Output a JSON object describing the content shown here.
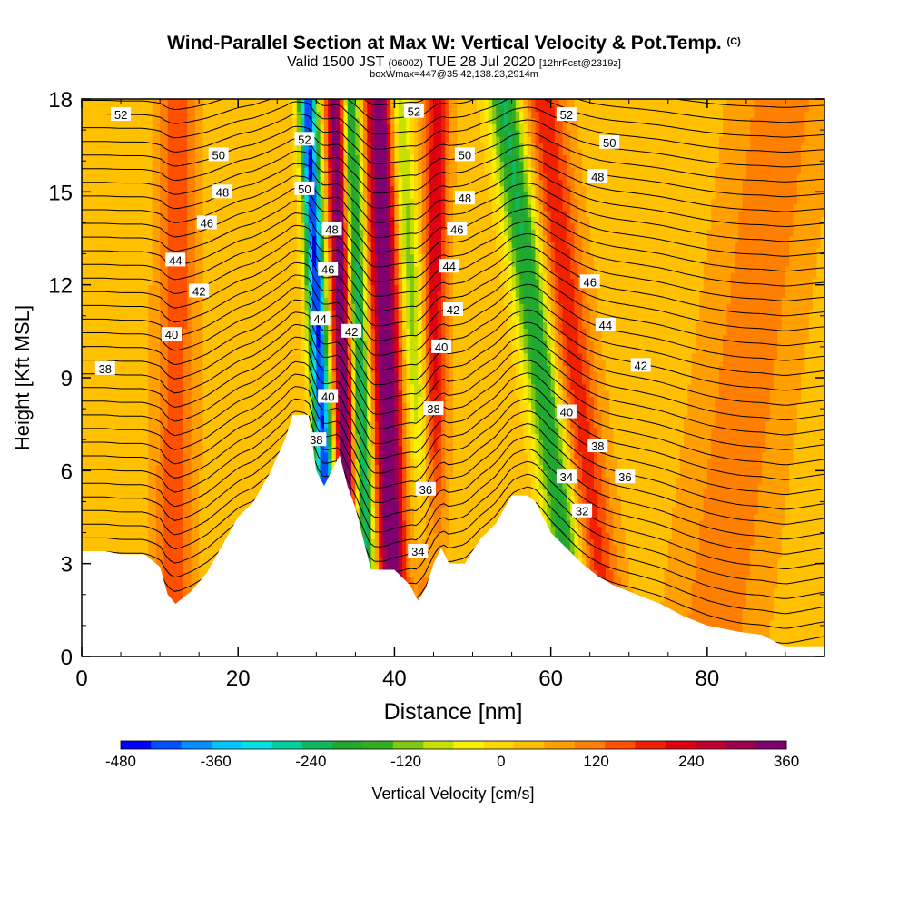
{
  "header": {
    "title": "Wind-Parallel Section at Max W: Vertical Velocity & Pot.Temp.",
    "title_mark": "(C)",
    "valid_prefix": "Valid 1500 JST",
    "valid_zulu": "(0600Z)",
    "valid_date": "TUE 28 Jul 2020",
    "forecast": "[12hrFcst@2319z]",
    "box_info": "boxWmax=447@35.42,138.23,2914m"
  },
  "chart_data": {
    "type": "heatmap",
    "xlabel": "Distance [nm]",
    "ylabel": "Height [Kft MSL]",
    "xlim": [
      0,
      95
    ],
    "ylim": [
      0,
      18
    ],
    "x_ticks": [
      0,
      20,
      40,
      60,
      80
    ],
    "y_ticks": [
      0,
      3,
      6,
      9,
      12,
      15,
      18
    ],
    "grid": false,
    "colorbar": {
      "label": "Vertical Velocity [cm/s]",
      "placement": "bottom",
      "tick_labels": [
        "-480",
        "-360",
        "-240",
        "-120",
        "0",
        "120",
        "240",
        "360"
      ],
      "tick_values": [
        -480,
        -360,
        -240,
        -120,
        0,
        120,
        240,
        360
      ],
      "colors": [
        "#0000ff",
        "#0050ff",
        "#0090ff",
        "#00c8ff",
        "#00e0e0",
        "#00d0a0",
        "#10b860",
        "#20a830",
        "#30b020",
        "#80c810",
        "#c8e000",
        "#f8f000",
        "#ffd800",
        "#ffc000",
        "#ffa000",
        "#ff8000",
        "#ff5000",
        "#f02000",
        "#e00010",
        "#c00030",
        "#a00050",
        "#800070"
      ]
    },
    "terrain": [
      [
        0,
        3.4
      ],
      [
        3,
        3.4
      ],
      [
        5,
        3.3
      ],
      [
        8,
        3.3
      ],
      [
        10,
        2.9
      ],
      [
        11,
        2.0
      ],
      [
        12,
        1.7
      ],
      [
        14,
        2.1
      ],
      [
        16,
        2.7
      ],
      [
        18,
        3.6
      ],
      [
        20,
        4.5
      ],
      [
        22,
        5.0
      ],
      [
        24,
        5.9
      ],
      [
        26,
        7.0
      ],
      [
        27,
        7.8
      ],
      [
        29,
        7.8
      ],
      [
        30,
        6.0
      ],
      [
        31,
        5.5
      ],
      [
        32,
        6.0
      ],
      [
        33,
        6.5
      ],
      [
        34,
        5.5
      ],
      [
        35,
        4.8
      ],
      [
        36,
        3.8
      ],
      [
        37,
        2.8
      ],
      [
        40,
        2.8
      ],
      [
        42,
        2.3
      ],
      [
        43,
        1.8
      ],
      [
        44,
        2.2
      ],
      [
        45,
        3.0
      ],
      [
        46,
        3.5
      ],
      [
        47,
        3.0
      ],
      [
        49,
        3.0
      ],
      [
        51,
        3.8
      ],
      [
        53,
        4.3
      ],
      [
        55,
        5.2
      ],
      [
        57,
        5.2
      ],
      [
        58,
        5.0
      ],
      [
        60,
        4.0
      ],
      [
        62,
        3.5
      ],
      [
        64,
        3.0
      ],
      [
        66,
        2.6
      ],
      [
        68,
        2.3
      ],
      [
        71,
        2.0
      ],
      [
        74,
        1.7
      ],
      [
        77,
        1.3
      ],
      [
        80,
        1.0
      ],
      [
        84,
        0.8
      ],
      [
        87,
        0.7
      ],
      [
        90,
        0.3
      ],
      [
        95,
        0.3
      ]
    ],
    "velocity_bands": [
      {
        "x": 12,
        "slope": 0.04,
        "width": 2.5,
        "w": 120
      },
      {
        "x": 30.5,
        "slope": -0.18,
        "width": 1.2,
        "w": -480
      },
      {
        "x": 33.5,
        "slope": -0.1,
        "width": 1.3,
        "w": 360
      },
      {
        "x": 35.5,
        "slope": -0.15,
        "width": 1.3,
        "w": -300
      },
      {
        "x": 39,
        "slope": -0.1,
        "width": 1.8,
        "w": 360
      },
      {
        "x": 43,
        "slope": -0.3,
        "width": 1.5,
        "w": -160
      },
      {
        "x": 45,
        "slope": 0.05,
        "width": 1.6,
        "w": 200
      },
      {
        "x": 59,
        "slope": -0.55,
        "width": 2.2,
        "w": -260
      },
      {
        "x": 63,
        "slope": -0.45,
        "width": 2.8,
        "w": 160
      },
      {
        "x": 85,
        "slope": 0.5,
        "width": 6.0,
        "w": 80
      }
    ],
    "isentrope_labels": [
      {
        "text": "52",
        "x": 5,
        "y": 17.5
      },
      {
        "text": "50",
        "x": 17.5,
        "y": 16.2
      },
      {
        "text": "48",
        "x": 18,
        "y": 15.0
      },
      {
        "text": "46",
        "x": 16,
        "y": 14.0
      },
      {
        "text": "44",
        "x": 12,
        "y": 12.8
      },
      {
        "text": "42",
        "x": 15,
        "y": 11.8
      },
      {
        "text": "40",
        "x": 11.5,
        "y": 10.4
      },
      {
        "text": "38",
        "x": 3,
        "y": 9.3
      },
      {
        "text": "52",
        "x": 28.5,
        "y": 16.7
      },
      {
        "text": "50",
        "x": 28.5,
        "y": 15.1
      },
      {
        "text": "48",
        "x": 32,
        "y": 13.8
      },
      {
        "text": "46",
        "x": 31.5,
        "y": 12.5
      },
      {
        "text": "44",
        "x": 30.5,
        "y": 10.9
      },
      {
        "text": "42",
        "x": 34.5,
        "y": 10.5
      },
      {
        "text": "40",
        "x": 31.5,
        "y": 8.4
      },
      {
        "text": "38",
        "x": 30,
        "y": 7.0
      },
      {
        "text": "52",
        "x": 42.5,
        "y": 17.6
      },
      {
        "text": "50",
        "x": 49,
        "y": 16.2
      },
      {
        "text": "48",
        "x": 49,
        "y": 14.8
      },
      {
        "text": "46",
        "x": 48,
        "y": 13.8
      },
      {
        "text": "44",
        "x": 47,
        "y": 12.6
      },
      {
        "text": "42",
        "x": 47.5,
        "y": 11.2
      },
      {
        "text": "40",
        "x": 46,
        "y": 10.0
      },
      {
        "text": "38",
        "x": 45,
        "y": 8.0
      },
      {
        "text": "36",
        "x": 44,
        "y": 5.4
      },
      {
        "text": "34",
        "x": 43,
        "y": 3.4
      },
      {
        "text": "52",
        "x": 62,
        "y": 17.5
      },
      {
        "text": "50",
        "x": 67.5,
        "y": 16.6
      },
      {
        "text": "48",
        "x": 66,
        "y": 15.5
      },
      {
        "text": "46",
        "x": 65,
        "y": 12.1
      },
      {
        "text": "44",
        "x": 67,
        "y": 10.7
      },
      {
        "text": "42",
        "x": 71.5,
        "y": 9.4
      },
      {
        "text": "40",
        "x": 62,
        "y": 7.9
      },
      {
        "text": "38",
        "x": 66,
        "y": 6.8
      },
      {
        "text": "36",
        "x": 69.5,
        "y": 5.8
      },
      {
        "text": "34",
        "x": 62,
        "y": 5.8
      },
      {
        "text": "32",
        "x": 64,
        "y": 4.7
      }
    ]
  }
}
